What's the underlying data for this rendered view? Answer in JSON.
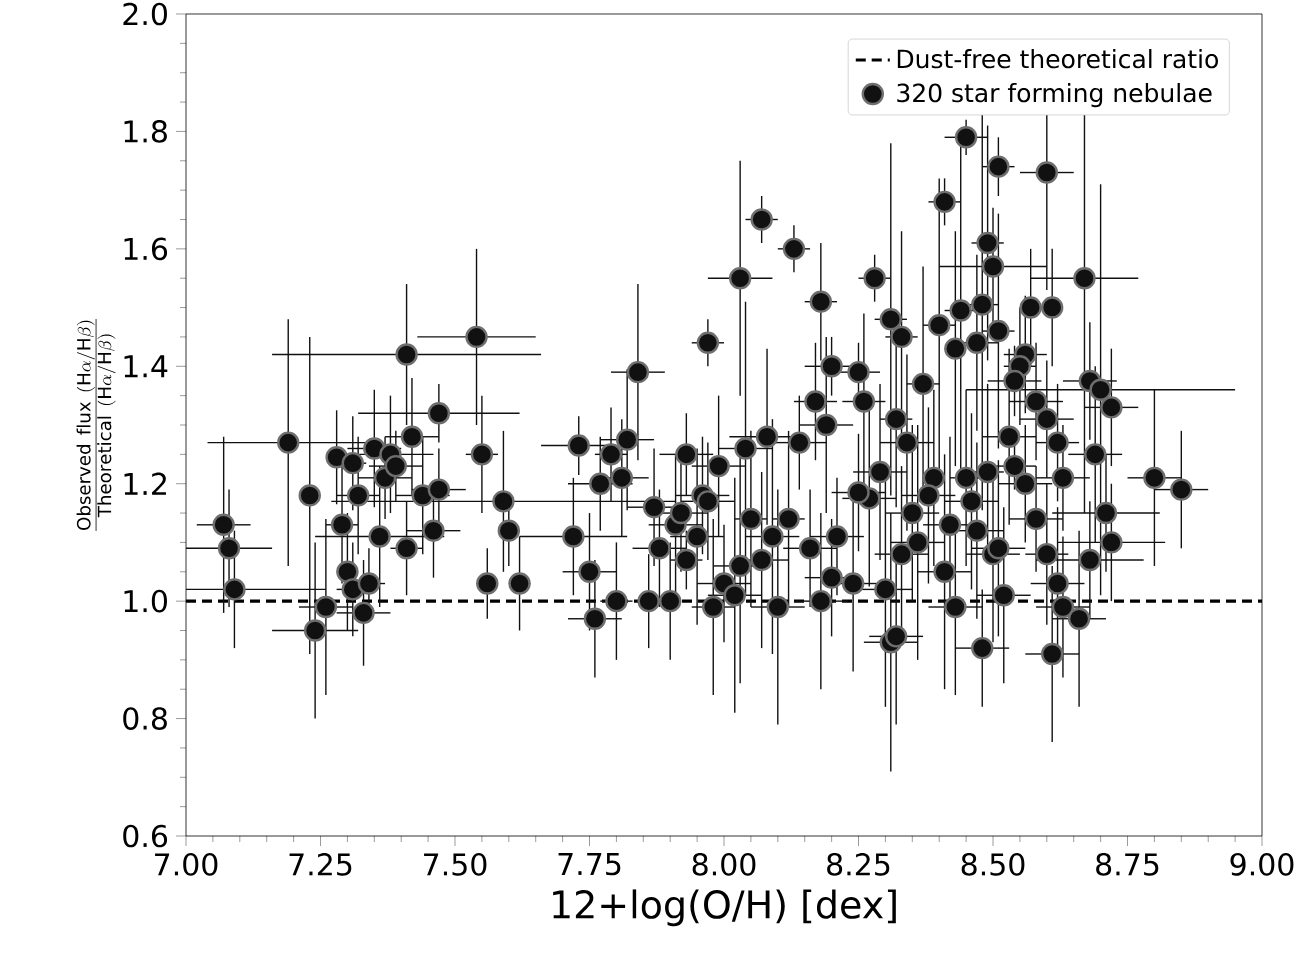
{
  "chart_data": {
    "type": "scatter",
    "xlabel": "12+log(O/H) [dex]",
    "ylabel": "\\frac{\\mathrm{Observed\\ flux\\ (H\\alpha/H\\beta)}}{\\mathrm{Theoretical\\ (H\\alpha/H\\beta)}}",
    "xlim": [
      7.0,
      9.0
    ],
    "ylim": [
      0.6,
      2.0
    ],
    "xticks": [
      {
        "value": 7.0,
        "label": "7.00"
      },
      {
        "value": 7.25,
        "label": "7.25"
      },
      {
        "value": 7.5,
        "label": "7.50"
      },
      {
        "value": 7.75,
        "label": "7.75"
      },
      {
        "value": 8.0,
        "label": "8.00"
      },
      {
        "value": 8.25,
        "label": "8.25"
      },
      {
        "value": 8.5,
        "label": "8.50"
      },
      {
        "value": 8.75,
        "label": "8.75"
      },
      {
        "value": 9.0,
        "label": "9.00"
      }
    ],
    "yticks": [
      {
        "value": 0.6,
        "label": "0.6"
      },
      {
        "value": 0.8,
        "label": "0.8"
      },
      {
        "value": 1.0,
        "label": "1.0"
      },
      {
        "value": 1.2,
        "label": "1.2"
      },
      {
        "value": 1.4,
        "label": "1.4"
      },
      {
        "value": 1.6,
        "label": "1.6"
      },
      {
        "value": 1.8,
        "label": "1.8"
      },
      {
        "value": 2.0,
        "label": "2.0"
      }
    ],
    "legend": "top right",
    "marker": "circle",
    "ref_lines": [
      {
        "axis": "y",
        "value": 1.0,
        "label": "Dust-free theoretical ratio",
        "color": "#000000",
        "line_style": "dashed"
      }
    ],
    "series": [
      {
        "name": "320 star forming nebulae",
        "color": "#111111",
        "x": [
          7.07,
          7.08,
          7.09,
          7.19,
          7.23,
          7.28,
          7.29,
          7.31,
          7.32,
          7.3,
          7.31,
          7.26,
          7.24,
          7.33,
          7.34,
          7.35,
          7.38,
          7.37,
          7.39,
          7.36,
          7.41,
          7.41,
          7.42,
          7.44,
          7.47,
          7.46,
          7.47,
          7.54,
          7.55,
          7.59,
          7.6,
          7.56,
          7.62,
          7.97,
          7.84,
          7.73,
          7.82,
          7.79,
          7.93,
          7.77,
          7.81,
          7.87,
          7.96,
          7.72,
          7.91,
          7.88,
          7.95,
          7.93,
          7.75,
          7.76,
          7.8,
          7.86,
          7.9,
          7.98,
          7.99,
          8.04,
          8.08,
          8.14,
          8.17,
          8.2,
          8.25,
          8.26,
          8.19,
          8.05,
          8.09,
          8.12,
          8.03,
          8.07,
          8.0,
          8.02,
          8.1,
          8.18,
          8.16,
          8.2,
          8.24,
          8.27,
          8.21,
          8.29,
          8.25,
          8.31,
          7.92,
          7.97,
          8.07,
          8.13,
          8.03,
          8.18,
          8.28,
          8.31,
          8.45,
          8.51,
          8.6,
          8.41,
          8.49,
          8.5,
          8.67,
          8.57,
          8.61,
          8.48,
          8.44,
          8.4,
          8.51,
          8.33,
          8.47,
          8.43,
          8.56,
          8.55,
          8.37,
          8.54,
          8.68,
          8.7,
          8.72,
          8.58,
          8.6,
          8.32,
          8.34,
          8.53,
          8.62,
          8.69,
          8.63,
          8.8,
          8.85,
          8.39,
          8.45,
          8.49,
          8.54,
          8.56,
          8.38,
          8.46,
          8.35,
          8.71,
          8.58,
          8.47,
          8.42,
          8.72,
          8.5,
          8.51,
          8.68,
          8.6,
          8.36,
          8.33,
          8.41,
          8.62,
          8.3,
          8.52,
          8.43,
          8.63,
          8.66,
          8.32,
          8.48,
          8.61
        ],
        "values": [
          1.13,
          1.09,
          1.02,
          1.27,
          1.18,
          1.245,
          1.13,
          1.235,
          1.18,
          1.05,
          1.02,
          0.99,
          0.95,
          0.98,
          1.03,
          1.26,
          1.25,
          1.21,
          1.23,
          1.11,
          1.09,
          1.42,
          1.28,
          1.18,
          1.19,
          1.12,
          1.32,
          1.45,
          1.25,
          1.17,
          1.12,
          1.03,
          1.03,
          1.44,
          1.39,
          1.265,
          1.275,
          1.25,
          1.25,
          1.2,
          1.21,
          1.16,
          1.18,
          1.11,
          1.13,
          1.09,
          1.11,
          1.07,
          1.05,
          0.97,
          1.0,
          1.0,
          1.0,
          0.99,
          1.23,
          1.26,
          1.28,
          1.27,
          1.34,
          1.4,
          1.39,
          1.34,
          1.3,
          1.14,
          1.11,
          1.14,
          1.06,
          1.07,
          1.03,
          1.01,
          0.99,
          1.0,
          1.09,
          1.04,
          1.03,
          1.175,
          1.11,
          1.22,
          1.185,
          0.93,
          1.15,
          1.17,
          1.65,
          1.6,
          1.55,
          1.51,
          1.55,
          1.48,
          1.79,
          1.74,
          1.73,
          1.68,
          1.61,
          1.57,
          1.55,
          1.5,
          1.5,
          1.505,
          1.495,
          1.47,
          1.46,
          1.45,
          1.44,
          1.43,
          1.42,
          1.4,
          1.37,
          1.375,
          1.375,
          1.36,
          1.33,
          1.34,
          1.31,
          1.31,
          1.27,
          1.28,
          1.27,
          1.25,
          1.21,
          1.21,
          1.19,
          1.21,
          1.21,
          1.22,
          1.23,
          1.2,
          1.18,
          1.17,
          1.15,
          1.15,
          1.14,
          1.12,
          1.13,
          1.1,
          1.08,
          1.09,
          1.07,
          1.08,
          1.1,
          1.08,
          1.05,
          1.03,
          1.02,
          1.01,
          0.99,
          0.99,
          0.97,
          0.94,
          0.92,
          0.91
        ],
        "errors": [
          0.15,
          0.1,
          0.1,
          0.21,
          0.27,
          0.08,
          0.1,
          0.08,
          0.1,
          0.1,
          0.08,
          0.15,
          0.15,
          0.09,
          0.06,
          0.1,
          0.1,
          0.07,
          0.06,
          0.12,
          0.08,
          0.12,
          0.1,
          0.1,
          0.07,
          0.08,
          0.05,
          0.15,
          0.1,
          0.12,
          0.06,
          0.06,
          0.08,
          0.04,
          0.15,
          0.05,
          0.12,
          0.08,
          0.07,
          0.08,
          0.1,
          0.1,
          0.1,
          0.1,
          0.12,
          0.1,
          0.15,
          0.05,
          0.1,
          0.1,
          0.1,
          0.08,
          0.1,
          0.15,
          0.12,
          0.25,
          0.15,
          0.08,
          0.1,
          0.05,
          0.05,
          0.15,
          0.15,
          0.15,
          0.2,
          0.15,
          0.2,
          0.15,
          0.1,
          0.2,
          0.2,
          0.15,
          0.1,
          0.1,
          0.15,
          0.15,
          0.1,
          0.15,
          0.1,
          0.22,
          0.1,
          0.1,
          0.04,
          0.04,
          0.2,
          0.1,
          0.04,
          0.3,
          0.03,
          0.05,
          0.2,
          0.04,
          0.2,
          0.1,
          0.4,
          0.1,
          0.1,
          0.35,
          0.3,
          0.25,
          0.2,
          0.18,
          0.15,
          0.2,
          0.1,
          0.1,
          0.2,
          0.06,
          0.1,
          0.35,
          0.1,
          0.1,
          0.1,
          0.15,
          0.15,
          0.15,
          0.1,
          0.15,
          0.09,
          0.15,
          0.1,
          0.15,
          0.15,
          0.15,
          0.04,
          0.1,
          0.15,
          0.15,
          0.15,
          0.1,
          0.09,
          0.15,
          0.15,
          0.1,
          0.15,
          0.15,
          0.1,
          0.12,
          0.2,
          0.15,
          0.2,
          0.13,
          0.2,
          0.15,
          0.15,
          0.12,
          0.15,
          0.15,
          0.1,
          0.15
        ],
        "xerrors": [
          0.05,
          0.08,
          [
            7.0,
            7.26
          ],
          0.15,
          0.02,
          0.015,
          0.03,
          0.025,
          0.04,
          0.02,
          0.03,
          0.05,
          0.08,
          0.05,
          0.03,
          0.05,
          0.08,
          0.05,
          0.05,
          0.12,
          0.03,
          0.25,
          0.05,
          0.05,
          0.05,
          0.05,
          0.15,
          0.11,
          0.03,
          0.32,
          0.02,
          0.02,
          0.02,
          0.03,
          0.05,
          0.07,
          0.05,
          0.03,
          0.05,
          0.06,
          0.05,
          0.05,
          0.05,
          0.1,
          0.05,
          0.05,
          0.05,
          0.03,
          0.05,
          0.05,
          0.03,
          0.015,
          0.015,
          0.04,
          0.05,
          0.05,
          0.07,
          0.05,
          0.04,
          0.05,
          0.04,
          0.04,
          0.05,
          0.03,
          0.05,
          0.03,
          0.05,
          0.05,
          0.05,
          0.05,
          0.05,
          0.05,
          0.05,
          0.05,
          0.05,
          0.05,
          0.05,
          0.05,
          0.05,
          0.05,
          0.05,
          0.05,
          0.03,
          0.03,
          0.06,
          0.03,
          0.03,
          0.03,
          0.04,
          0.03,
          0.05,
          0.03,
          0.03,
          0.1,
          0.1,
          0.015,
          0.015,
          0.03,
          0.03,
          0.03,
          0.03,
          0.03,
          0.04,
          0.02,
          0.04,
          0.03,
          0.03,
          0.05,
          0.05,
          0.25,
          0.05,
          0.05,
          0.05,
          0.03,
          0.05,
          0.05,
          0.04,
          0.05,
          0.05,
          0.05,
          0.05,
          0.015,
          0.03,
          0.03,
          0.04,
          0.05,
          0.05,
          0.05,
          0.05,
          0.1,
          0.05,
          0.05,
          0.05,
          0.1,
          0.05,
          0.05,
          0.1,
          0.04,
          0.05,
          0.05,
          0.05,
          0.05,
          0.05,
          0.05,
          0.05,
          0.05,
          0.05,
          0.05,
          0.05,
          0.05
        ]
      }
    ]
  }
}
